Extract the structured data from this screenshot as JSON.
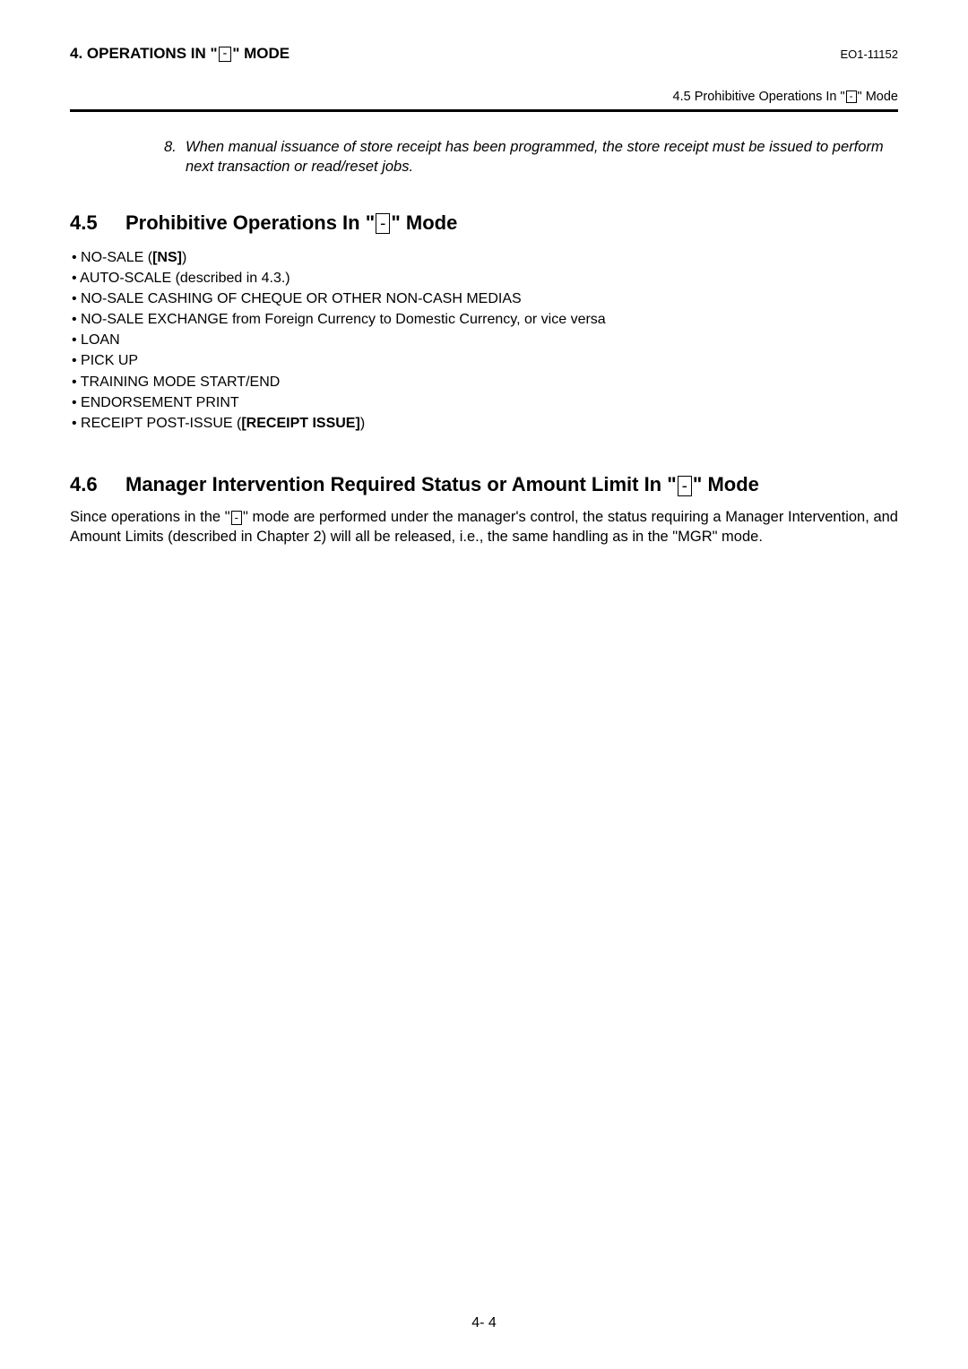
{
  "header": {
    "chapter_title_prefix": "4. OPERATIONS IN \"",
    "chapter_title_suffix": "\" MODE",
    "key_symbol": "-",
    "doc_number": "EO1-11152",
    "sub_prefix": "4.5 Prohibitive Operations In \"",
    "sub_suffix": "\" Mode"
  },
  "note": {
    "num": "8.",
    "text": "When manual issuance of store receipt has been programmed, the store receipt must be issued to perform next transaction or read/reset jobs."
  },
  "section45": {
    "num": "4.5",
    "title_prefix": "Prohibitive Operations In \"",
    "title_suffix": "\" Mode",
    "items": [
      {
        "plain": "NO-SALE (",
        "bold": "[NS]",
        "tail": ")"
      },
      {
        "plain": "AUTO-SCALE (described in 4.3.)"
      },
      {
        "plain": "NO-SALE CASHING OF CHEQUE OR OTHER NON-CASH MEDIAS"
      },
      {
        "plain": "NO-SALE EXCHANGE from Foreign Currency to Domestic Currency, or vice versa"
      },
      {
        "plain": "LOAN"
      },
      {
        "plain": "PICK UP"
      },
      {
        "plain": "TRAINING MODE START/END"
      },
      {
        "plain": "ENDORSEMENT PRINT"
      },
      {
        "plain": "RECEIPT POST-ISSUE (",
        "bold": "[RECEIPT ISSUE]",
        "tail": ")"
      }
    ]
  },
  "section46": {
    "num": "4.6",
    "title_prefix": "Manager Intervention Required Status or Amount Limit In \"",
    "title_suffix": "\" Mode",
    "para_before": "Since operations in the \"",
    "para_after": "\" mode are performed under the manager's control, the status requiring a Manager Intervention, and Amount Limits (described in Chapter 2) will all be released, i.e., the same handling as in the \"MGR\" mode."
  },
  "page_number": "4- 4"
}
